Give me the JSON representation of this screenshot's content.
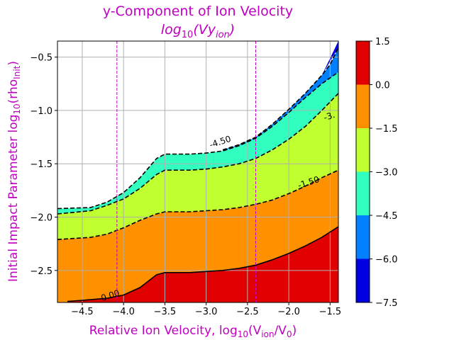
{
  "chart_data": {
    "type": "contour",
    "title": {
      "line1": "y-Component of Ion Velocity",
      "line2_prefix": "log",
      "line2_sub": "10",
      "line2_body": "(Vy",
      "line2_body_sub": "ion",
      "line2_suffix": ")"
    },
    "xlabel": {
      "prefix": "Relative Ion Velocity,  log",
      "sub1": "10",
      "mid": "(V",
      "sub2": "ion",
      "mid2": "/V",
      "sub3": "0",
      "suffix": ")"
    },
    "ylabel": {
      "prefix": "Initial Impact Parameter log",
      "sub1": "10",
      "mid": "(rho",
      "sub2": "Init",
      "suffix": ")"
    },
    "xlim": [
      -4.8,
      -1.4
    ],
    "ylim": [
      -2.8,
      -0.35
    ],
    "x_ticks": [
      {
        "v": -4.5,
        "label": "−4.5"
      },
      {
        "v": -4.0,
        "label": "−4.0"
      },
      {
        "v": -3.5,
        "label": "−3.5"
      },
      {
        "v": -3.0,
        "label": "−3.0"
      },
      {
        "v": -2.5,
        "label": "−2.5"
      },
      {
        "v": -2.0,
        "label": "−2.0"
      },
      {
        "v": -1.5,
        "label": "−1.5"
      }
    ],
    "y_ticks": [
      {
        "v": -0.5,
        "label": "−0.5"
      },
      {
        "v": -1.0,
        "label": "−1.0"
      },
      {
        "v": -1.5,
        "label": "−1.5"
      },
      {
        "v": -2.0,
        "label": "−2.0"
      },
      {
        "v": -2.5,
        "label": "−2.5"
      }
    ],
    "grid": true,
    "vlines": [
      -4.08,
      -2.4
    ],
    "vline_color": "#c000c0",
    "contour_lines": [
      {
        "level": 0.0,
        "label": "0.00",
        "style": "solid",
        "label_at": [
          -4.15,
          -2.76
        ],
        "x": [
          -4.68,
          -4.5,
          -4.2,
          -4.0,
          -3.8,
          -3.6,
          -3.5,
          -3.2,
          -3.0,
          -2.8,
          -2.6,
          -2.4,
          -2.2,
          -2.0,
          -1.8,
          -1.6,
          -1.4
        ],
        "y": [
          -2.79,
          -2.78,
          -2.76,
          -2.73,
          -2.66,
          -2.54,
          -2.52,
          -2.52,
          -2.51,
          -2.5,
          -2.48,
          -2.45,
          -2.4,
          -2.34,
          -2.27,
          -2.19,
          -2.09
        ]
      },
      {
        "level": -1.5,
        "label": "-1.50",
        "style": "dashed",
        "label_at": [
          -1.75,
          -1.7
        ],
        "x": [
          -4.8,
          -4.4,
          -4.2,
          -4.0,
          -3.8,
          -3.6,
          -3.5,
          -3.2,
          -3.0,
          -2.8,
          -2.6,
          -2.4,
          -2.2,
          -2.0,
          -1.8,
          -1.6,
          -1.4
        ],
        "y": [
          -2.21,
          -2.19,
          -2.16,
          -2.1,
          -2.03,
          -1.97,
          -1.95,
          -1.95,
          -1.94,
          -1.93,
          -1.91,
          -1.88,
          -1.84,
          -1.78,
          -1.71,
          -1.63,
          -1.56
        ]
      },
      {
        "level": -3.0,
        "label": "-3.",
        "style": "dashed",
        "label_at": [
          -1.5,
          -1.08
        ],
        "x": [
          -4.8,
          -4.4,
          -4.2,
          -4.0,
          -3.8,
          -3.6,
          -3.5,
          -3.2,
          -3.0,
          -2.8,
          -2.6,
          -2.4,
          -2.2,
          -2.0,
          -1.8,
          -1.6,
          -1.4
        ],
        "y": [
          -1.97,
          -1.94,
          -1.89,
          -1.83,
          -1.73,
          -1.6,
          -1.56,
          -1.56,
          -1.55,
          -1.53,
          -1.5,
          -1.45,
          -1.37,
          -1.27,
          -1.15,
          -1.0,
          -0.84
        ]
      },
      {
        "level": -4.5,
        "label": "-4.50",
        "style": "dashed",
        "label_at": [
          -2.82,
          -1.32
        ],
        "x": [
          -4.8,
          -4.4,
          -4.2,
          -4.0,
          -3.8,
          -3.6,
          -3.5,
          -3.2,
          -3.0,
          -2.8,
          -2.6,
          -2.4,
          -2.2,
          -2.0,
          -1.8,
          -1.6,
          -1.4
        ],
        "y": [
          -1.92,
          -1.91,
          -1.86,
          -1.77,
          -1.63,
          -1.45,
          -1.41,
          -1.41,
          -1.4,
          -1.38,
          -1.33,
          -1.26,
          -1.15,
          -1.02,
          -0.88,
          -0.75,
          -0.64
        ]
      },
      {
        "level": -6.0,
        "label": "",
        "style": "dashed",
        "label_at": null,
        "x": [
          -2.8,
          -2.6,
          -2.4,
          -2.2,
          -2.0,
          -1.8,
          -1.6,
          -1.5,
          -1.4
        ],
        "y": [
          -1.37,
          -1.32,
          -1.25,
          -1.13,
          -0.99,
          -0.84,
          -0.67,
          -0.57,
          -0.41
        ]
      }
    ],
    "colorbar": {
      "levels": [
        -7.5,
        -6.0,
        -4.5,
        -3.0,
        -1.5,
        0.0,
        1.5
      ],
      "tick_labels": [
        "−7.5",
        "−6.0",
        "−4.5",
        "−3.0",
        "−1.5",
        "0.0",
        "1.5"
      ],
      "colors": [
        "#0000e0",
        "#0080ff",
        "#30ffc0",
        "#c0ff30",
        "#ff9000",
        "#e00000"
      ]
    },
    "title_color": "#c000c0",
    "label_color": "#c000c0"
  }
}
